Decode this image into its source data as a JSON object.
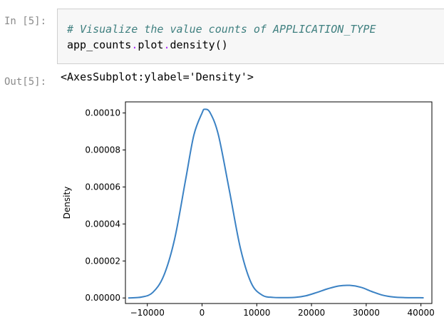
{
  "cell": {
    "in_prompt": "In [5]:",
    "out_prompt": "Out[5]:",
    "code_comment": "# Visualize the value counts of APPLICATION_TYPE",
    "code_obj": "app_counts",
    "code_attr": "plot",
    "code_method": "density()",
    "output_text": "<AxesSubplot:ylabel='Density'>"
  },
  "chart_data": {
    "type": "line",
    "ylabel": "Density",
    "xlabel": "",
    "xlim": [
      -14000,
      42000
    ],
    "ylim": [
      -3e-06,
      0.000106
    ],
    "xticks": [
      -10000,
      0,
      10000,
      20000,
      30000,
      40000
    ],
    "xtick_labels": [
      "−10000",
      "0",
      "10000",
      "20000",
      "30000",
      "40000"
    ],
    "yticks": [
      0.0,
      2e-05,
      4e-05,
      6e-05,
      8e-05,
      0.0001
    ],
    "ytick_labels": [
      "0.00000",
      "0.00002",
      "0.00004",
      "0.00006",
      "0.00008",
      "0.00010"
    ],
    "grid": false,
    "color": "#3b82c4",
    "x": [
      -13500,
      -11000,
      -9000,
      -7000,
      -5000,
      -3000,
      -1500,
      0,
      500,
      1500,
      3000,
      5000,
      7000,
      9000,
      11000,
      13000,
      15000,
      17000,
      19000,
      21000,
      23000,
      25000,
      27000,
      29000,
      31000,
      33000,
      35000,
      37000,
      40500
    ],
    "y": [
      0.0,
      5e-07,
      3e-06,
      1.2e-05,
      3.2e-05,
      6.4e-05,
      8.8e-05,
      0.0001,
      0.000102,
      0.0001,
      8.8e-05,
      5.8e-05,
      2.7e-05,
      8e-06,
      1.5e-06,
      3e-07,
      2e-07,
      3e-07,
      1.2e-06,
      3e-06,
      5e-06,
      6.5e-06,
      6.8e-06,
      5.8e-06,
      3.5e-06,
      1.5e-06,
      5e-07,
      2e-07,
      1e-07
    ]
  }
}
